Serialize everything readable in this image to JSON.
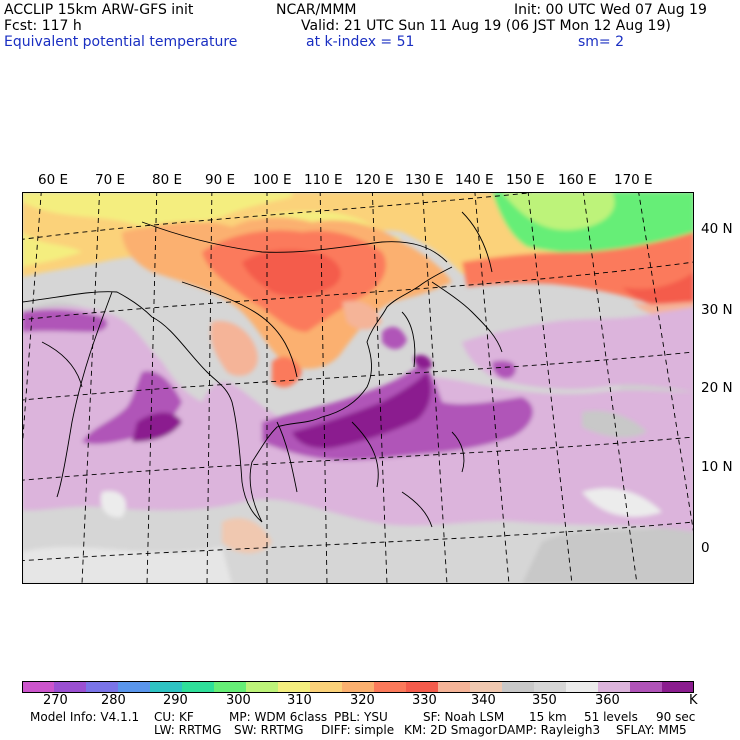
{
  "header": {
    "model": "ACCLIP 15km ARW-GFS init",
    "org": "NCAR/MMM",
    "init": "Init: 00 UTC Wed 07 Aug 19",
    "fcst": "Fcst:  117 h",
    "valid": "Valid: 21 UTC Sun 11 Aug 19 (06 JST Mon 12 Aug 19)",
    "field": "Equivalent potential temperature",
    "level": "at k-index =  51",
    "smooth": "sm= 2"
  },
  "map": {
    "lon_labels": [
      "60 E",
      "70 E",
      "80 E",
      "90 E",
      "100 E",
      "110 E",
      "120 E",
      "130 E",
      "140 E",
      "150 E",
      "160 E",
      "170 E"
    ],
    "lat_labels": [
      "40 N",
      "30 N",
      "20 N",
      "10 N",
      "0"
    ]
  },
  "colorbar": {
    "colors": [
      "#cc55cc",
      "#9b50d2",
      "#7a74e8",
      "#5a96ec",
      "#2ec3c3",
      "#2fdf9a",
      "#66ee77",
      "#bdf37a",
      "#f4ee7f",
      "#fbd27a",
      "#fbb06f",
      "#fb7a5b",
      "#f45c4c",
      "#f5b498",
      "#f0c8b0",
      "#c8c8c8",
      "#d6d6d6",
      "#ececec",
      "#dcb4dc",
      "#b054b8",
      "#8b1d8f"
    ],
    "ticks": [
      "270",
      "280",
      "290",
      "300",
      "310",
      "320",
      "330",
      "340",
      "350",
      "360"
    ],
    "unit": "K"
  },
  "footer": {
    "line1": [
      "Model Info: V4.1.1",
      "CU: KF",
      "MP: WDM 6class",
      "PBL: YSU",
      "SF: Noah LSM",
      "15 km",
      "51 levels",
      "90 sec"
    ],
    "line2": [
      "LW: RRTMG",
      "SW: RRTMG",
      "DIFF: simple",
      "KM: 2D Smagor",
      "DAMP: Rayleigh3",
      "SFLAY: MM5"
    ]
  }
}
